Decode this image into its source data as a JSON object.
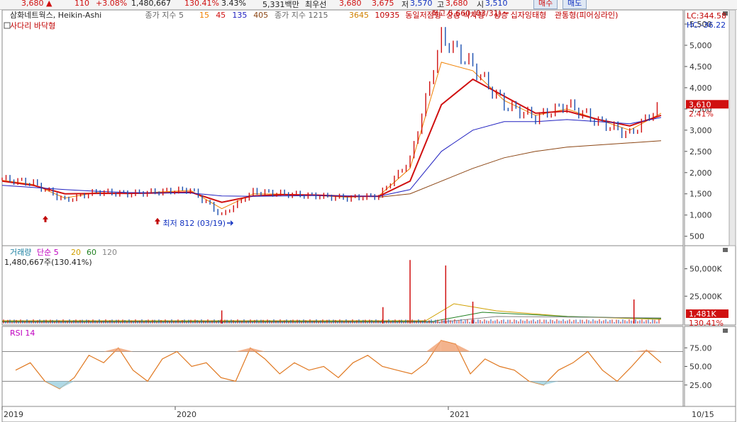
{
  "topbar": {
    "price": "3,680",
    "change_arrow": "▲",
    "change": "110",
    "change_pct": "+3.08%",
    "volume": "1,480,667",
    "volume_pct": "130.41%",
    "turnover": "3.43%",
    "amount": "5,331백만",
    "label_best": "최우선",
    "ask": "3,680",
    "bid": "3,675",
    "label_low": "저",
    "low": "3,570",
    "label_high": "고",
    "high": "3,680",
    "label_open": "시",
    "open": "3,510",
    "buy_button": "매수",
    "sell_button": "매도"
  },
  "colors": {
    "up": "#d01010",
    "down": "#1a4fb0",
    "ma5": "#f08000",
    "ma15": "#d01010",
    "ma45": "#2020c0",
    "ma135": "#8b4513",
    "rsi": "#e07820",
    "grid": "#888888"
  },
  "price_panel": {
    "legend": [
      {
        "text": "삼화네트웍스, Heikin-Ashi",
        "color": "#222222"
      },
      {
        "text": "종가 지수 5",
        "color": "#666666"
      },
      {
        "text": "15",
        "color": "#f08000"
      },
      {
        "text": "45",
        "color": "#d01010"
      },
      {
        "text": "135",
        "color": "#2020c0"
      },
      {
        "text": "405",
        "color": "#8b4513"
      },
      {
        "text": "종가 지수 1215",
        "color": "#666666"
      },
      {
        "text": "3645",
        "color": "#d08000"
      },
      {
        "text": "10935",
        "color": "#c00000"
      },
      {
        "text": "동일저점형",
        "color": "#c00000"
      },
      {
        "text": "상승 박차형",
        "color": "#c00000"
      },
      {
        "text": "상승 십자잉태형",
        "color": "#c00000"
      },
      {
        "text": "관통형(피어싱라인)",
        "color": "#c00000"
      }
    ],
    "legend2": "사다리 바닥형",
    "lc_label": "LC:344.58",
    "hc_label": "HC:-36.22",
    "current_price_tag": "3,610",
    "current_pct_tag": "2.41%",
    "high_annotation": "최고 5,660 (03/31)",
    "low_annotation": "최저 812 (03/19)"
  },
  "volume_panel": {
    "legend": [
      {
        "text": "거래량",
        "color": "#1a7fa0"
      },
      {
        "text": "단순 5",
        "color": "#c000c0"
      },
      {
        "text": "20",
        "color": "#d0a000"
      },
      {
        "text": "60",
        "color": "#208020"
      },
      {
        "text": "120",
        "color": "#888888"
      }
    ],
    "subtitle": "1,480,667주(130.41%)",
    "volume_tag": "1,481K",
    "pct_tag": "130.41%"
  },
  "rsi_panel": {
    "legend": "RSI 14"
  },
  "chart_data": [
    {
      "type": "line",
      "title": "삼화네트웍스, Heikin-Ashi",
      "x": [
        "2019-01",
        "2019-03",
        "2019-05",
        "2019-07",
        "2019-09",
        "2019-11",
        "2020-01",
        "2020-03",
        "2020-05",
        "2020-07",
        "2020-09",
        "2020-11",
        "2021-01",
        "2021-02",
        "2021-03",
        "2021-04",
        "2021-05",
        "2021-06",
        "2021-07",
        "2021-08",
        "2021-09",
        "2021-10"
      ],
      "series": [
        {
          "name": "종가",
          "values": [
            1850,
            1750,
            1350,
            1550,
            1500,
            1550,
            1600,
            1000,
            1550,
            1500,
            1450,
            1400,
            1450,
            2300,
            5200,
            4500,
            3600,
            3300,
            3600,
            3200,
            2900,
            3610
          ]
        },
        {
          "name": "15",
          "values": [
            1820,
            1720,
            1400,
            1530,
            1500,
            1540,
            1580,
            1150,
            1500,
            1490,
            1460,
            1420,
            1450,
            2100,
            4600,
            4400,
            3700,
            3350,
            3500,
            3250,
            3000,
            3400
          ]
        },
        {
          "name": "45",
          "values": [
            1800,
            1700,
            1500,
            1510,
            1510,
            1520,
            1540,
            1300,
            1450,
            1480,
            1470,
            1440,
            1440,
            1800,
            3600,
            4200,
            3800,
            3400,
            3450,
            3250,
            3100,
            3350
          ]
        },
        {
          "name": "135",
          "values": [
            1700,
            1650,
            1600,
            1560,
            1530,
            1520,
            1520,
            1450,
            1440,
            1450,
            1460,
            1450,
            1440,
            1600,
            2500,
            3000,
            3200,
            3200,
            3250,
            3200,
            3150,
            3300
          ]
        },
        {
          "name": "405",
          "values": [
            null,
            null,
            null,
            null,
            null,
            null,
            null,
            null,
            null,
            null,
            null,
            null,
            1420,
            1500,
            1800,
            2100,
            2350,
            2500,
            2600,
            2650,
            2700,
            2750
          ]
        }
      ],
      "y_ticks": [
        "5,500",
        "5,000",
        "4,500",
        "4,000",
        "3,500",
        "3,000",
        "2,500",
        "2,000",
        "1,500",
        "1,000",
        "500"
      ],
      "ylim": [
        344.58,
        5700
      ],
      "x_tick_labels": [
        "2019",
        "2020",
        "2021",
        "10/15"
      ],
      "annotations": [
        "최고 5,660 (03/31)",
        "최저 812 (03/19)"
      ],
      "grid": false
    },
    {
      "type": "bar",
      "title": "거래량",
      "y_ticks": [
        "50,000K",
        "25,000K"
      ],
      "spikes": [
        {
          "x": "2020-03",
          "value": 12000
        },
        {
          "x": "2021-01",
          "value": 15000
        },
        {
          "x": "2021-02",
          "value": 58000
        },
        {
          "x": "2021-03",
          "value": 53000
        },
        {
          "x": "2021-04",
          "value": 20000
        },
        {
          "x": "2021-09",
          "value": 22000
        }
      ],
      "last_value": 1481
    },
    {
      "type": "line",
      "title": "RSI 14",
      "y_ticks": [
        "75.00",
        "50.00",
        "25.00"
      ],
      "ylim": [
        0,
        100
      ],
      "guides": [
        70,
        30
      ],
      "values": [
        45,
        55,
        30,
        20,
        35,
        65,
        55,
        75,
        45,
        30,
        60,
        70,
        50,
        55,
        35,
        30,
        75,
        60,
        40,
        55,
        45,
        50,
        35,
        55,
        65,
        50,
        45,
        40,
        55,
        85,
        80,
        40,
        60,
        50,
        45,
        30,
        25,
        45,
        55,
        70,
        45,
        30,
        50,
        72,
        55
      ]
    }
  ]
}
